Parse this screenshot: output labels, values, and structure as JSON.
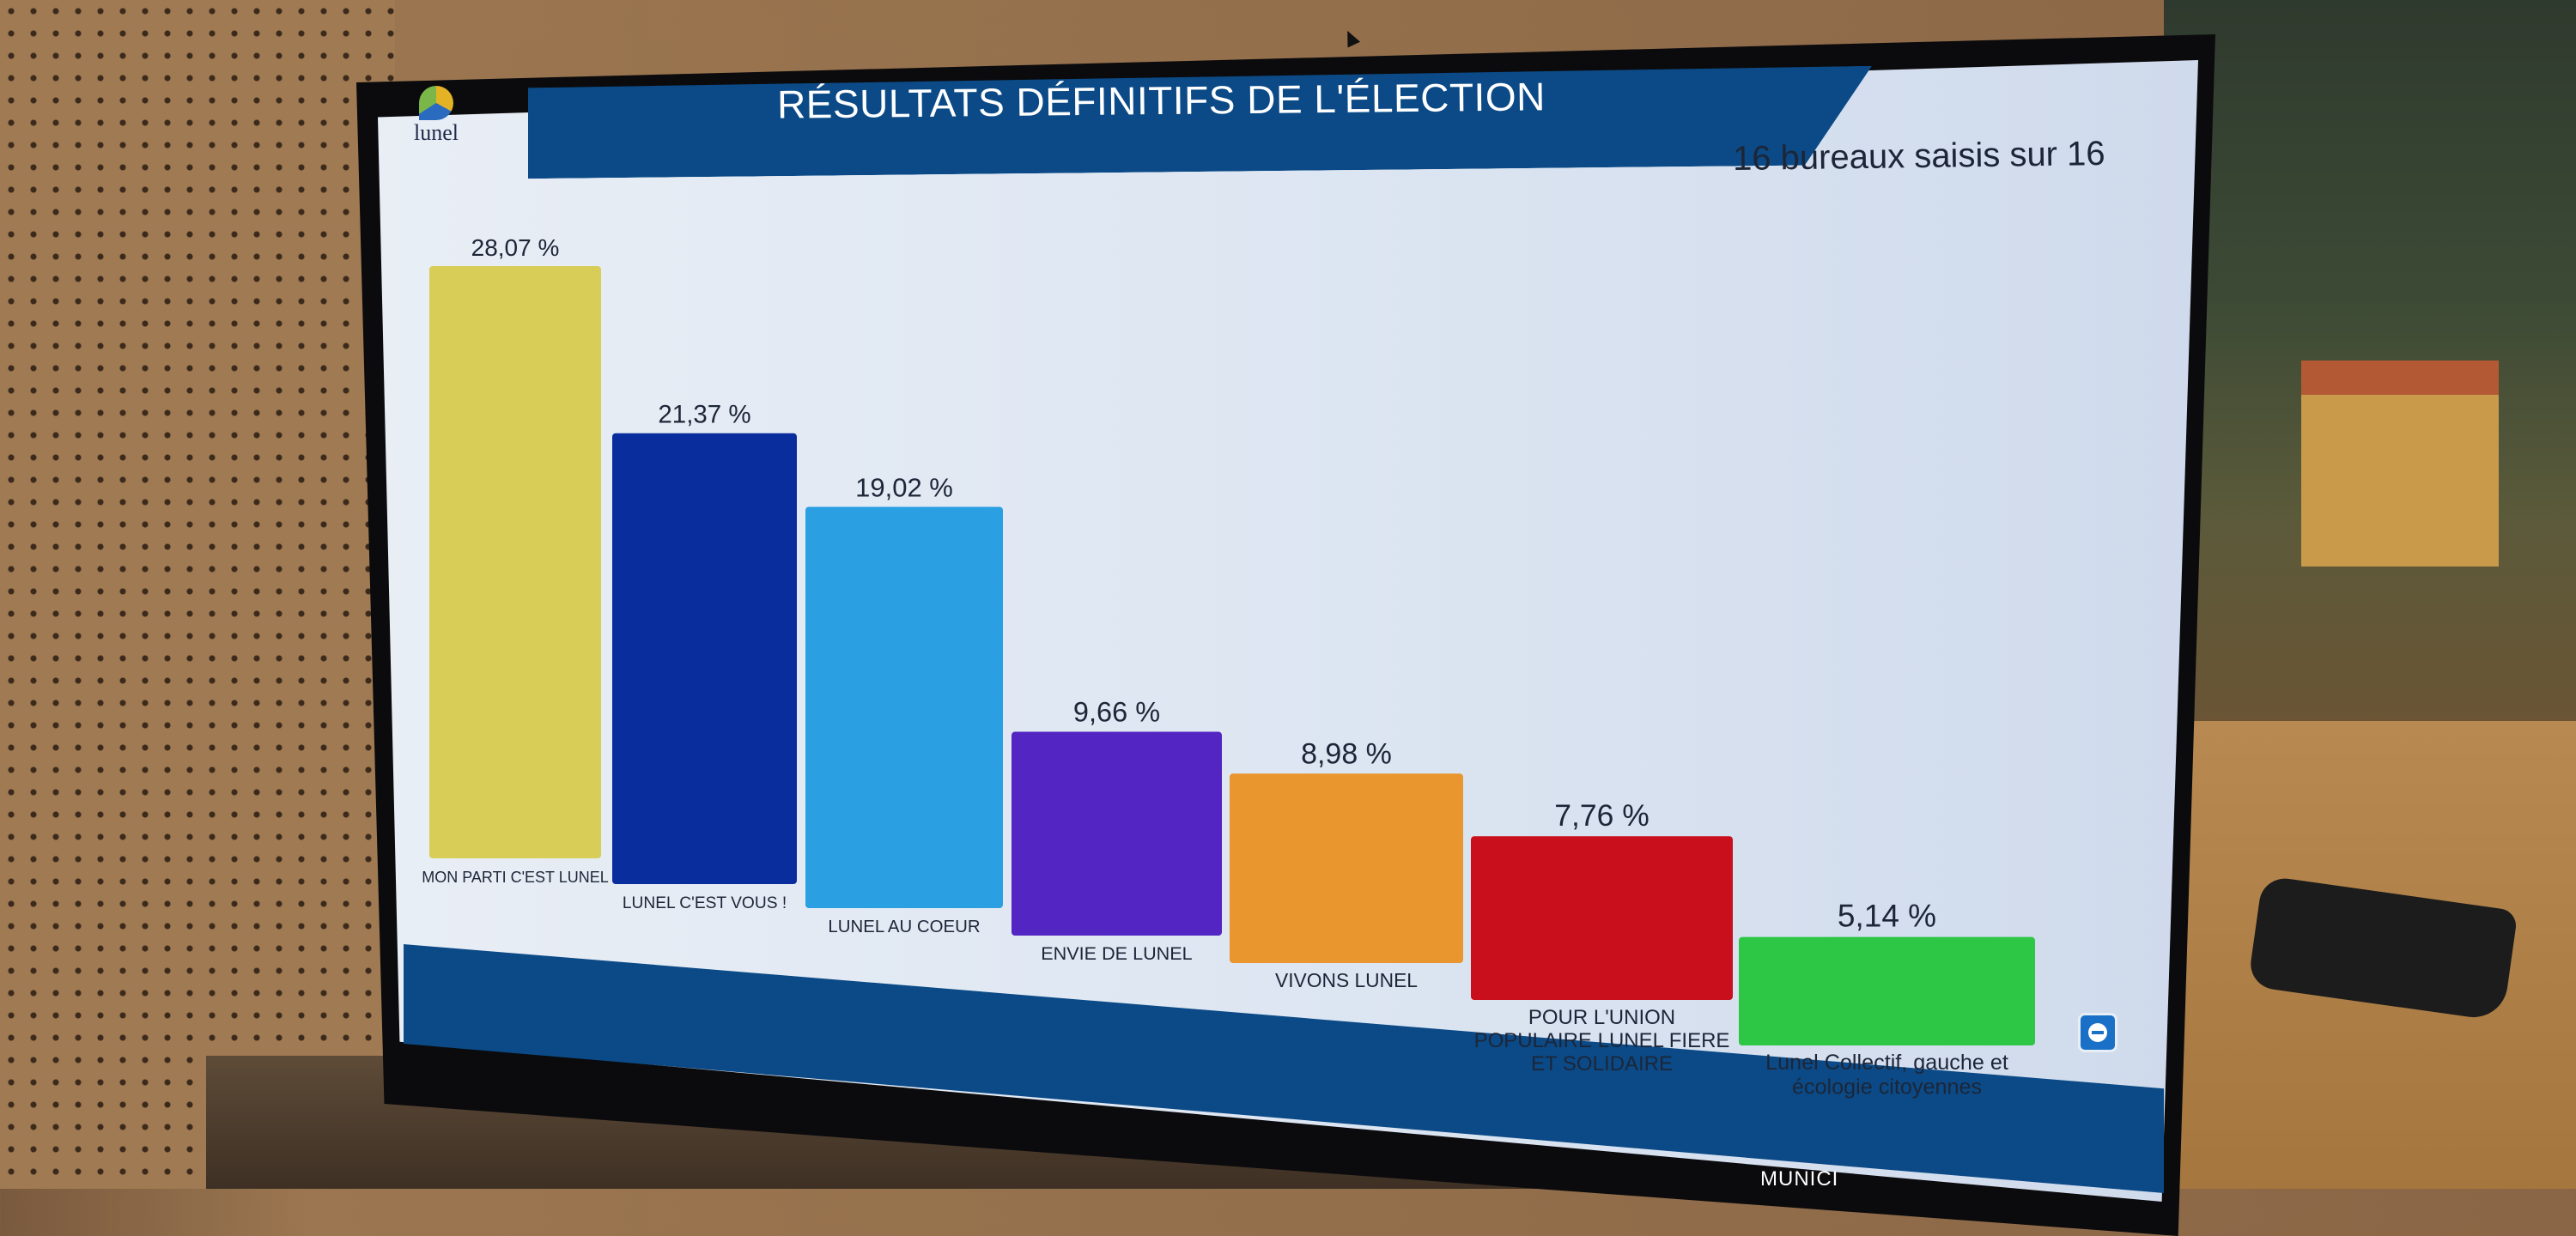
{
  "header": {
    "title": "RÉSULTATS DÉFINITIFS DE L'ÉLECTION",
    "logo_text": "lunel"
  },
  "counter": "16 bureaux saisis sur 16",
  "footer": "MUNICI",
  "chart_data": {
    "type": "bar",
    "categories": [
      "MON PARTI C'EST LUNEL",
      "LUNEL C'EST VOUS !",
      "LUNEL AU COEUR",
      "ENVIE DE LUNEL",
      "VIVONS LUNEL",
      "POUR L'UNION POPULAIRE LUNEL FIERE ET SOLIDAIRE",
      "Lunel Collectif, gauche et écologie citoyennes"
    ],
    "values": [
      28.07,
      21.37,
      19.02,
      9.66,
      8.98,
      7.76,
      5.14
    ],
    "value_labels": [
      "28,07 %",
      "21,37 %",
      "19,02 %",
      "9,66 %",
      "8,98 %",
      "7,76 %",
      "5,14 %"
    ],
    "colors": [
      "#d8cd57",
      "#0a2d9e",
      "#2aa0e3",
      "#5326c4",
      "#e9962e",
      "#c80f1b",
      "#2dc645"
    ],
    "ylim": [
      0,
      28.07
    ],
    "grid": false,
    "legend": "none"
  }
}
